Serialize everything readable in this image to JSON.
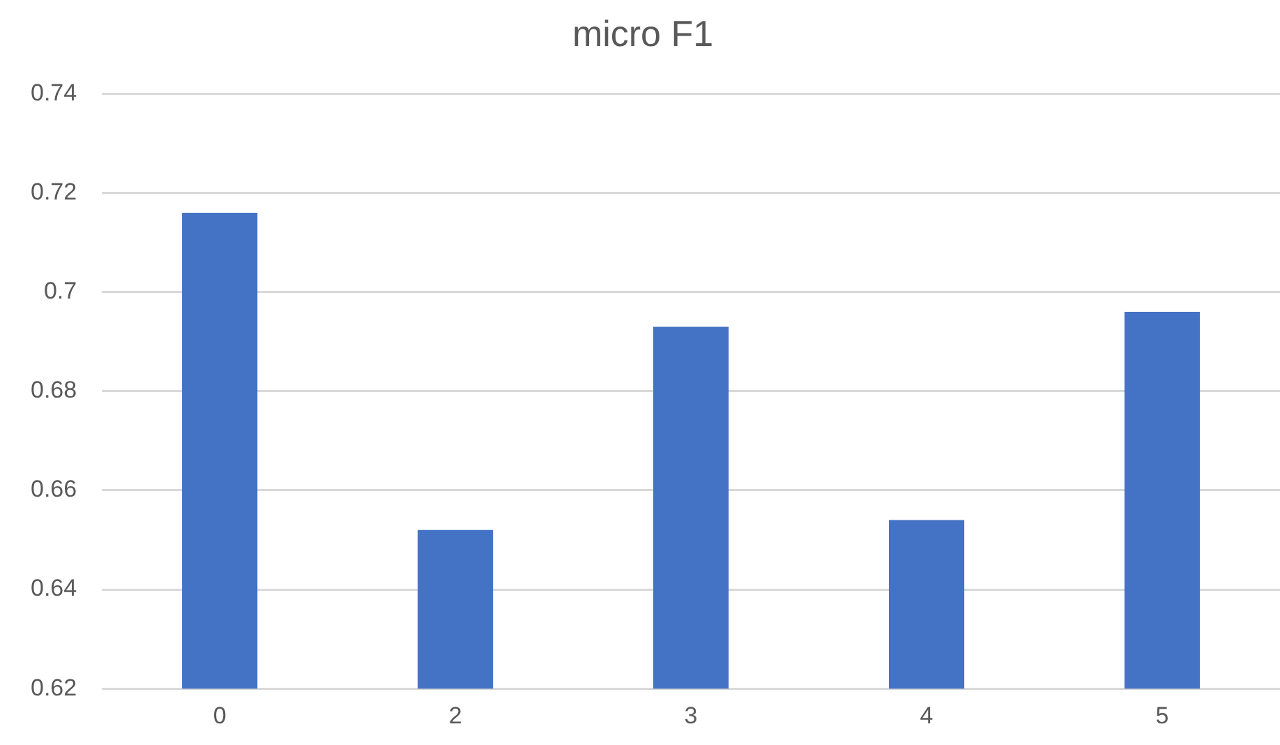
{
  "chart_data": {
    "type": "bar",
    "title": "micro F1",
    "categories": [
      "0",
      "2",
      "3",
      "4",
      "5"
    ],
    "values": [
      0.716,
      0.652,
      0.693,
      0.654,
      0.696
    ],
    "color": "#4472c4",
    "ylim": [
      0.62,
      0.74
    ],
    "yticks": [
      0.62,
      0.64,
      0.66,
      0.68,
      0.7,
      0.72,
      0.74
    ],
    "grid": "y",
    "legend": false
  }
}
